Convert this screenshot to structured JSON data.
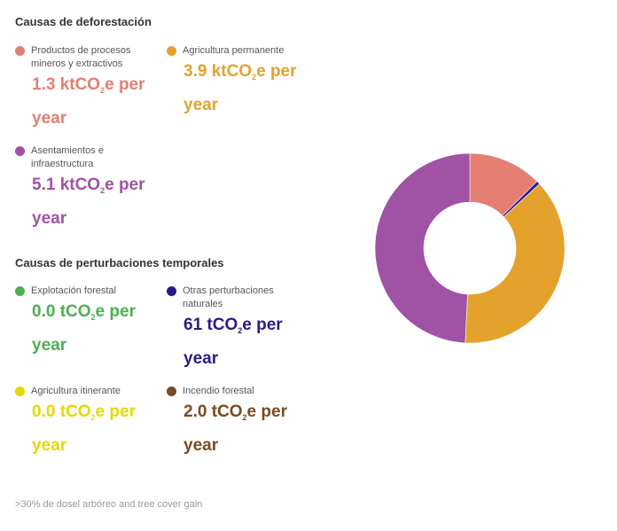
{
  "deforestation": {
    "title": "Causas de deforestación",
    "items": [
      {
        "label": "Productos de procesos mineros y extractivos",
        "value_main": "1.3 ktCO",
        "value_sub": "2",
        "value_tail": "e per year",
        "color": "#e47f72"
      },
      {
        "label": "Agricultura permanente",
        "value_main": "3.9 ktCO",
        "value_sub": "2",
        "value_tail": "e per year",
        "color": "#e4a22d"
      },
      {
        "label": "Asentamientos e infraestructura",
        "value_main": "5.1 ktCO",
        "value_sub": "2",
        "value_tail": "e per year",
        "color": "#a052a5"
      }
    ]
  },
  "disturbance": {
    "title": "Causas de perturbaciones temporales",
    "items": [
      {
        "label": "Explotación forestal",
        "value_main": "0.0 tCO",
        "value_sub": "2",
        "value_tail": "e per year",
        "color": "#4caf50"
      },
      {
        "label": "Otras perturbaciones naturales",
        "value_main": "61 tCO",
        "value_sub": "2",
        "value_tail": "e per year",
        "color": "#2e1a87"
      },
      {
        "label": "Agricultura itinerante",
        "value_main": "0.0 tCO",
        "value_sub": "2",
        "value_tail": "e per year",
        "color": "#e6d800"
      },
      {
        "label": "Incendio forestal",
        "value_main": "2.0 tCO",
        "value_sub": "2",
        "value_tail": "e per year",
        "color": "#7a4a22"
      }
    ]
  },
  "footnote": ">30% de dosel arbóreo and tree cover gain",
  "chart_data": {
    "type": "pie",
    "unit": "tCO2e per year",
    "slices": [
      {
        "label": "Productos de procesos mineros y extractivos",
        "value": 1300,
        "color": "#e47f72"
      },
      {
        "label": "Otras perturbaciones naturales",
        "value": 61,
        "color": "#2e1a87"
      },
      {
        "label": "Agricultura permanente",
        "value": 3900,
        "color": "#e4a22d"
      },
      {
        "label": "Asentamientos e infraestructura",
        "value": 5100,
        "color": "#a052a5"
      }
    ]
  }
}
